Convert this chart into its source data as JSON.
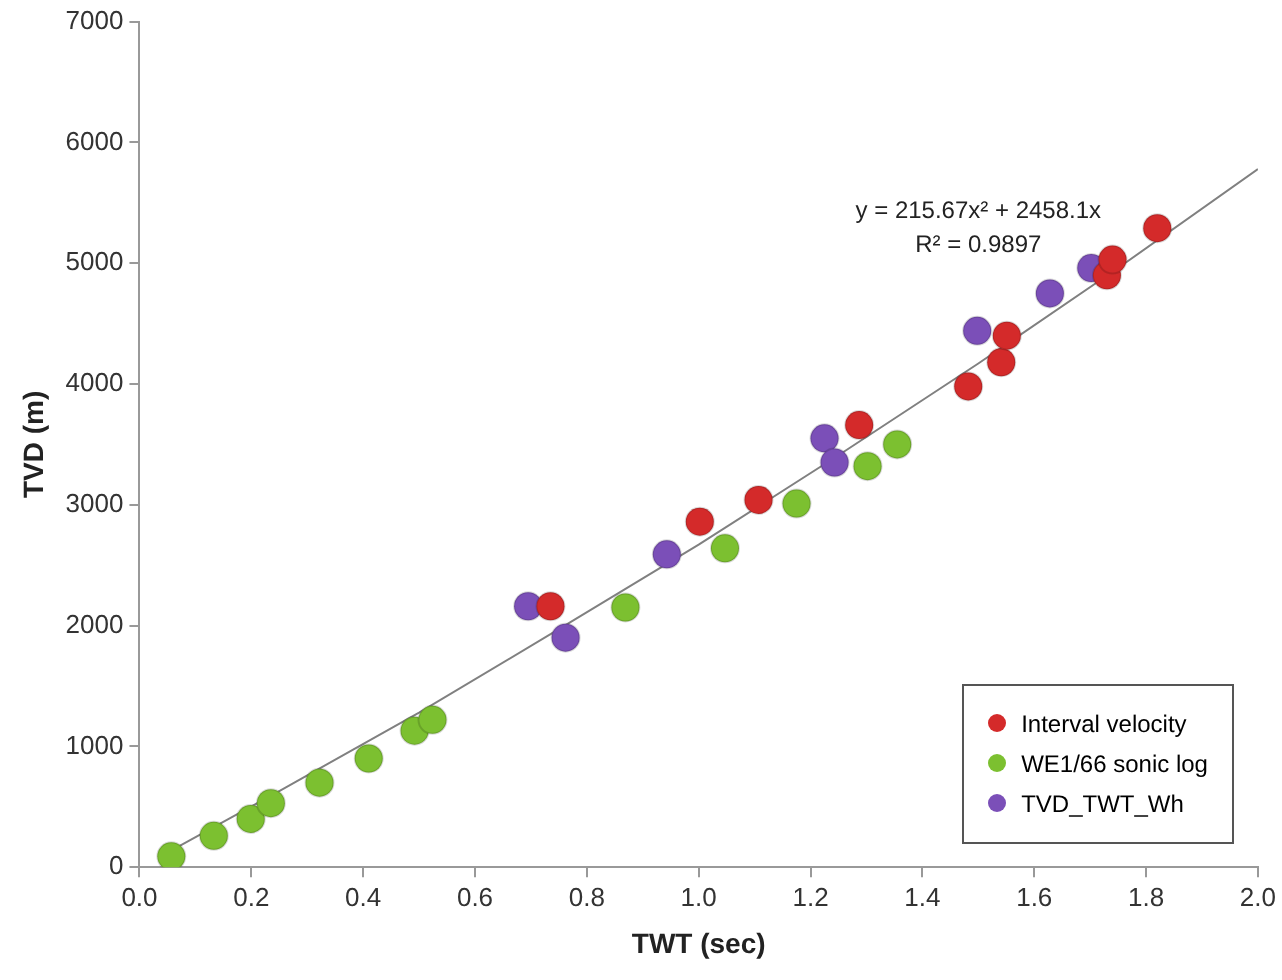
{
  "chart_data": {
    "type": "scatter",
    "xlabel": "TWT (sec)",
    "ylabel": "TVD (m)",
    "xlim": [
      0,
      2
    ],
    "xticks": [
      {
        "value": 0,
        "label": "0.0"
      },
      {
        "value": 0.2,
        "label": "0.2"
      },
      {
        "value": 0.4,
        "label": "0.4"
      },
      {
        "value": 0.6,
        "label": "0.6"
      },
      {
        "value": 0.8,
        "label": "0.8"
      },
      {
        "value": 1,
        "label": "1.0"
      },
      {
        "value": 1.2,
        "label": "1.2"
      },
      {
        "value": 1.4,
        "label": "1.4"
      },
      {
        "value": 1.6,
        "label": "1.6"
      },
      {
        "value": 1.8,
        "label": "1.8"
      },
      {
        "value": 2,
        "label": "2.0"
      }
    ],
    "ylim": [
      0,
      7000
    ],
    "yticks": [
      0,
      1000,
      2000,
      3000,
      4000,
      5000,
      6000,
      7000
    ],
    "grid": false,
    "legend": "bottom right",
    "marker": "circle",
    "annotations": [
      "y = 215.67x² + 2458.1x",
      "R² = 0.9897"
    ],
    "series": [
      {
        "type": "line",
        "color": "#808080",
        "marker": "none",
        "x": [
          0.05,
          0.25,
          0.5,
          0.75,
          1,
          1.25,
          1.5,
          1.75,
          2
        ],
        "values": [
          120,
          630,
          1280,
          1970,
          2670,
          3410,
          4170,
          4960,
          5780
        ]
      },
      {
        "name": "Interval velocity",
        "color": "#d42a2a",
        "x": [
          0.735,
          1.002,
          1.107,
          1.287,
          1.482,
          1.541,
          1.551,
          1.73,
          1.74,
          1.82
        ],
        "values": [
          2160,
          2860,
          3040,
          3660,
          3980,
          4180,
          4400,
          4900,
          5030,
          5290
        ]
      },
      {
        "name": "WE1/66 sonic log",
        "color": "#7cc030",
        "x": [
          0.057,
          0.133,
          0.199,
          0.235,
          0.322,
          0.41,
          0.492,
          0.524,
          0.869,
          1.047,
          1.175,
          1.302,
          1.355
        ],
        "values": [
          90,
          260,
          400,
          530,
          700,
          900,
          1130,
          1220,
          2150,
          2640,
          3010,
          3320,
          3500
        ]
      },
      {
        "name": "TVD_TWT_Wh",
        "color": "#7b4fb8",
        "x": [
          0.695,
          0.762,
          0.943,
          1.225,
          1.243,
          1.498,
          1.628,
          1.702
        ],
        "values": [
          2160,
          1900,
          2590,
          3550,
          3350,
          4440,
          4750,
          4960
        ]
      }
    ]
  }
}
